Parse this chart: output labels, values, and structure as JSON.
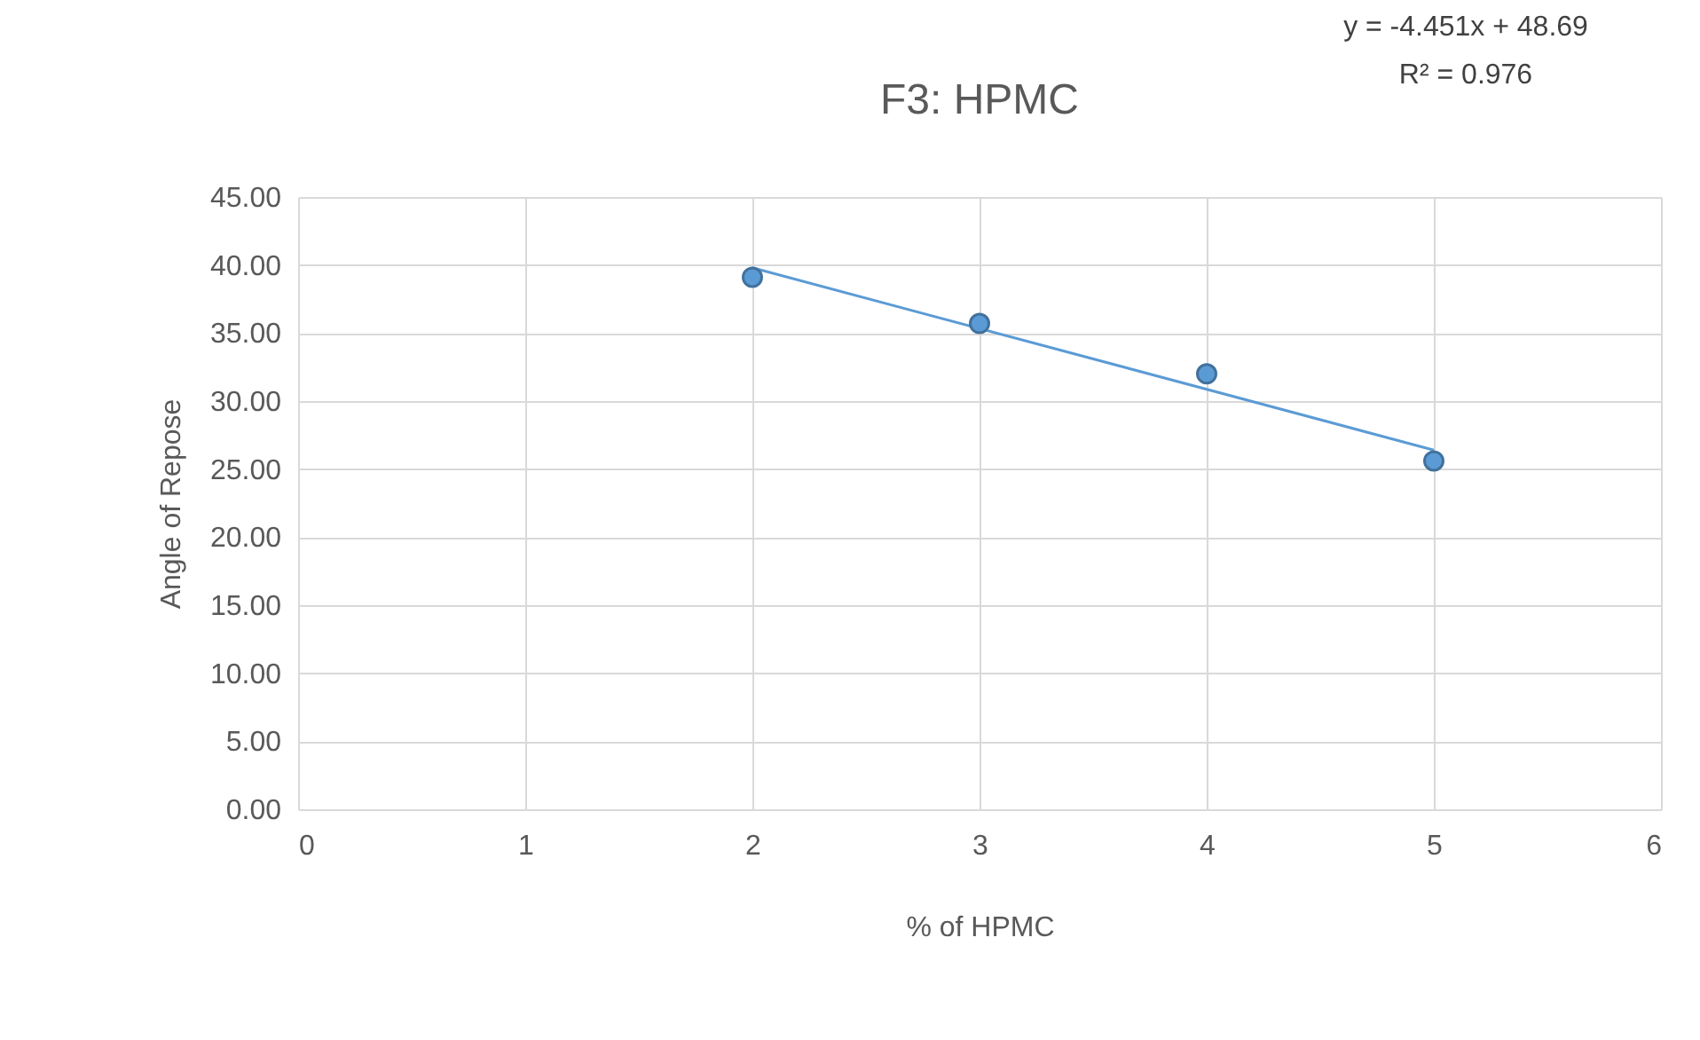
{
  "chart_data": {
    "type": "scatter",
    "title": "F3: HPMC",
    "xlabel": "% of HPMC",
    "ylabel": "Angle of Repose",
    "annotations": [
      "y = -4.451x + 48.69",
      "R² = 0.976"
    ],
    "x": [
      2,
      3,
      4,
      5
    ],
    "series": [
      {
        "color": "#5b9bd5",
        "marker": "circle",
        "values": [
          39.1,
          35.7,
          32.0,
          25.6
        ]
      },
      {
        "type": "line",
        "color": "#5b9bd5",
        "marker": "none",
        "x": [
          2,
          5
        ],
        "values": [
          39.8,
          26.4
        ]
      }
    ],
    "xlim": [
      0,
      6
    ],
    "xticks": [
      0,
      1,
      2,
      3,
      4,
      5,
      6
    ],
    "ylim": [
      0,
      45
    ],
    "yticks": [
      {
        "value": 0,
        "label": "0.00"
      },
      {
        "value": 5,
        "label": "5.00"
      },
      {
        "value": 10,
        "label": "10.00"
      },
      {
        "value": 15,
        "label": "15.00"
      },
      {
        "value": 20,
        "label": "20.00"
      },
      {
        "value": 25,
        "label": "25.00"
      },
      {
        "value": 30,
        "label": "30.00"
      },
      {
        "value": 35,
        "label": "35.00"
      },
      {
        "value": 40,
        "label": "40.00"
      },
      {
        "value": 45,
        "label": "45.00"
      }
    ],
    "grid": true
  }
}
